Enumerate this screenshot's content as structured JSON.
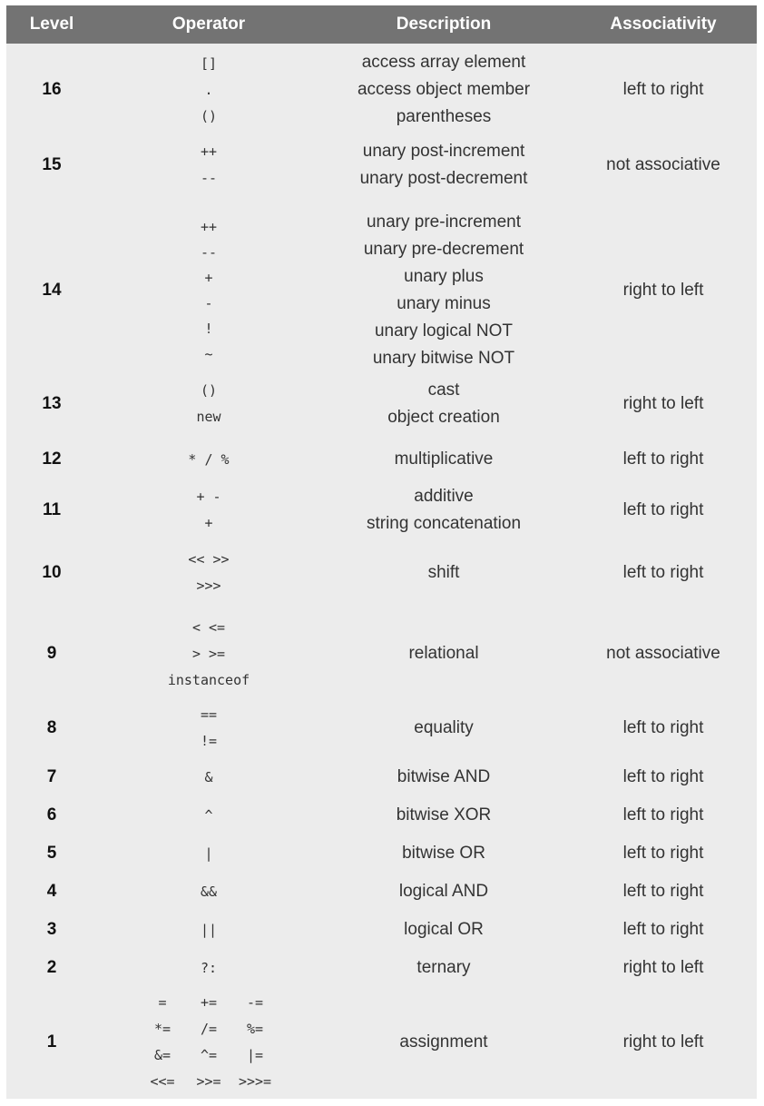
{
  "headers": {
    "level": "Level",
    "operator": "Operator",
    "description": "Description",
    "associativity": "Associativity"
  },
  "rows": [
    {
      "level": "16",
      "operators": [
        "[]",
        ".",
        "()"
      ],
      "descriptions": [
        "access array element",
        "access object member",
        "parentheses"
      ],
      "assoc": "left to right"
    },
    {
      "level": "15",
      "operators": [
        "++",
        "--"
      ],
      "descriptions": [
        "unary post-increment",
        "unary post-decrement"
      ],
      "assoc": "not associative"
    },
    {
      "level": "14",
      "operators": [
        "++",
        "--",
        "+",
        "-",
        "!",
        "~"
      ],
      "descriptions": [
        "unary pre-increment",
        "unary pre-decrement",
        "unary plus",
        "unary minus",
        "unary logical NOT",
        "unary bitwise NOT"
      ],
      "assoc": "right to left"
    },
    {
      "level": "13",
      "operators": [
        "()",
        "new"
      ],
      "descriptions": [
        "cast",
        "object creation"
      ],
      "assoc": "right to left"
    },
    {
      "level": "12",
      "operators": [
        "* / %"
      ],
      "descriptions": [
        "multiplicative"
      ],
      "assoc": "left to right"
    },
    {
      "level": "11",
      "operators": [
        "+ -",
        "+"
      ],
      "descriptions": [
        "additive",
        "string concatenation"
      ],
      "assoc": "left to right"
    },
    {
      "level": "10",
      "operators": [
        "<< >>",
        ">>>"
      ],
      "descriptions": [
        "shift"
      ],
      "assoc": "left to right"
    },
    {
      "level": "9",
      "operators": [
        "< <=",
        "> >=",
        "instanceof"
      ],
      "descriptions": [
        "relational"
      ],
      "assoc": "not associative"
    },
    {
      "level": "8",
      "operators": [
        "==",
        "!="
      ],
      "descriptions": [
        "equality"
      ],
      "assoc": "left to right"
    },
    {
      "level": "7",
      "operators": [
        "&"
      ],
      "descriptions": [
        "bitwise AND"
      ],
      "assoc": "left to right"
    },
    {
      "level": "6",
      "operators": [
        "^"
      ],
      "descriptions": [
        "bitwise XOR"
      ],
      "assoc": "left to right"
    },
    {
      "level": "5",
      "operators": [
        "|"
      ],
      "descriptions": [
        "bitwise OR"
      ],
      "assoc": "left to right"
    },
    {
      "level": "4",
      "operators": [
        "&&"
      ],
      "descriptions": [
        "logical AND"
      ],
      "assoc": "left to right"
    },
    {
      "level": "3",
      "operators": [
        "||"
      ],
      "descriptions": [
        "logical OR"
      ],
      "assoc": "left to right"
    },
    {
      "level": "2",
      "operators": [
        "?:"
      ],
      "descriptions": [
        "ternary"
      ],
      "assoc": "right to left"
    },
    {
      "level": "1",
      "operators": [
        "=",
        "+=",
        "-=",
        "*=",
        "/=",
        "%=",
        "&=",
        "^=",
        "|=",
        "<<=",
        ">>=",
        ">>>="
      ],
      "descriptions": [
        "assignment"
      ],
      "assoc": "right to left"
    }
  ]
}
